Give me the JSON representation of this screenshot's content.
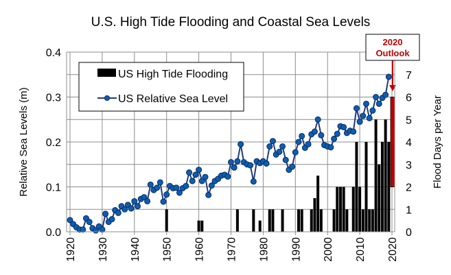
{
  "chart_data": {
    "type": "bar+line",
    "title": "U.S. High Tide Flooding and Coastal Sea Levels",
    "xlabel": "",
    "ylabel_left": "Relative Sea Levels (m)",
    "ylabel_right": "Flood Days per Year",
    "xlim": [
      1919,
      2021
    ],
    "ylim_left": [
      0,
      0.4
    ],
    "ylim_right": [
      0,
      8
    ],
    "grid": true,
    "x_ticks": [
      1920,
      1930,
      1940,
      1950,
      1960,
      1970,
      1980,
      1990,
      2000,
      2010,
      2020
    ],
    "x_tick_labels": [
      "1920",
      "1930",
      "1940",
      "1950",
      "1960",
      "1970",
      "1980",
      "1990",
      "2000",
      "2010",
      "2020"
    ],
    "y_left_ticks": [
      0.0,
      0.1,
      0.2,
      0.3,
      0.4
    ],
    "y_left_tick_labels": [
      "0.0",
      "0.1",
      "0.2",
      "0.3",
      "0.4"
    ],
    "y_right_ticks": [
      0,
      1,
      2,
      3,
      4,
      5,
      6,
      7
    ],
    "y_right_tick_labels": [
      "0",
      "1",
      "2",
      "3",
      "4",
      "5",
      "6",
      "7"
    ],
    "legend": {
      "placement": "top-left",
      "entries": [
        {
          "label": "US High Tide Flooding",
          "type": "bar"
        },
        {
          "label": "US Relative Sea Level",
          "type": "line-marker"
        }
      ]
    },
    "series": [
      {
        "name": "US High Tide Flooding",
        "type": "bar",
        "axis": "right",
        "color": "#000000",
        "x": [
          1950,
          1960,
          1961,
          1972,
          1977,
          1979,
          1982,
          1983,
          1986,
          1991,
          1992,
          1995,
          1996,
          1997,
          1998,
          2002,
          2003,
          2004,
          2005,
          2006,
          2008,
          2009,
          2010,
          2011,
          2012,
          2013,
          2014,
          2015,
          2016,
          2017,
          2018,
          2019
        ],
        "values": [
          1,
          0.5,
          0.5,
          1,
          1,
          0.5,
          1,
          1,
          1,
          1,
          1,
          1,
          1.5,
          2.5,
          1,
          1,
          2,
          2,
          2,
          1,
          2,
          4,
          2,
          1,
          4,
          1,
          1,
          5,
          3,
          4,
          5,
          4
        ]
      },
      {
        "name": "US Relative Sea Level",
        "type": "line",
        "axis": "left",
        "color": "#1f3a7a",
        "marker_color": "#0a5fb4",
        "x": [
          1920,
          1921,
          1922,
          1923,
          1924,
          1925,
          1926,
          1927,
          1928,
          1929,
          1930,
          1931,
          1932,
          1933,
          1934,
          1935,
          1936,
          1937,
          1938,
          1939,
          1940,
          1941,
          1942,
          1943,
          1944,
          1945,
          1946,
          1947,
          1948,
          1949,
          1950,
          1951,
          1952,
          1953,
          1954,
          1955,
          1956,
          1957,
          1958,
          1959,
          1960,
          1961,
          1962,
          1963,
          1964,
          1965,
          1966,
          1967,
          1968,
          1969,
          1970,
          1971,
          1972,
          1973,
          1974,
          1975,
          1976,
          1977,
          1978,
          1979,
          1980,
          1981,
          1982,
          1983,
          1984,
          1985,
          1986,
          1987,
          1988,
          1989,
          1990,
          1991,
          1992,
          1993,
          1994,
          1995,
          1996,
          1997,
          1998,
          1999,
          2000,
          2001,
          2002,
          2003,
          2004,
          2005,
          2006,
          2007,
          2008,
          2009,
          2010,
          2011,
          2012,
          2013,
          2014,
          2015,
          2016,
          2017,
          2018,
          2019
        ],
        "values": [
          0.026,
          0.017,
          0.01,
          0.005,
          0.005,
          0.03,
          0.022,
          0.008,
          0.003,
          0.012,
          0.005,
          0.04,
          0.022,
          0.028,
          0.048,
          0.042,
          0.057,
          0.05,
          0.06,
          0.052,
          0.068,
          0.057,
          0.073,
          0.077,
          0.068,
          0.105,
          0.093,
          0.098,
          0.11,
          0.067,
          0.083,
          0.102,
          0.097,
          0.098,
          0.087,
          0.097,
          0.102,
          0.132,
          0.113,
          0.127,
          0.138,
          0.113,
          0.122,
          0.082,
          0.103,
          0.113,
          0.118,
          0.125,
          0.127,
          0.123,
          0.155,
          0.143,
          0.157,
          0.195,
          0.155,
          0.15,
          0.148,
          0.112,
          0.157,
          0.153,
          0.157,
          0.152,
          0.19,
          0.202,
          0.172,
          0.178,
          0.19,
          0.16,
          0.138,
          0.145,
          0.177,
          0.2,
          0.213,
          0.187,
          0.195,
          0.217,
          0.223,
          0.25,
          0.215,
          0.193,
          0.19,
          0.188,
          0.207,
          0.218,
          0.235,
          0.233,
          0.22,
          0.225,
          0.223,
          0.275,
          0.245,
          0.258,
          0.285,
          0.253,
          0.27,
          0.3,
          0.285,
          0.298,
          0.305,
          0.345
        ]
      }
    ],
    "annotations": [
      {
        "label_line1": "2020",
        "label_line2": "Outlook",
        "color": "#c00000",
        "year": 2020,
        "range_days": [
          2,
          6
        ]
      }
    ]
  }
}
